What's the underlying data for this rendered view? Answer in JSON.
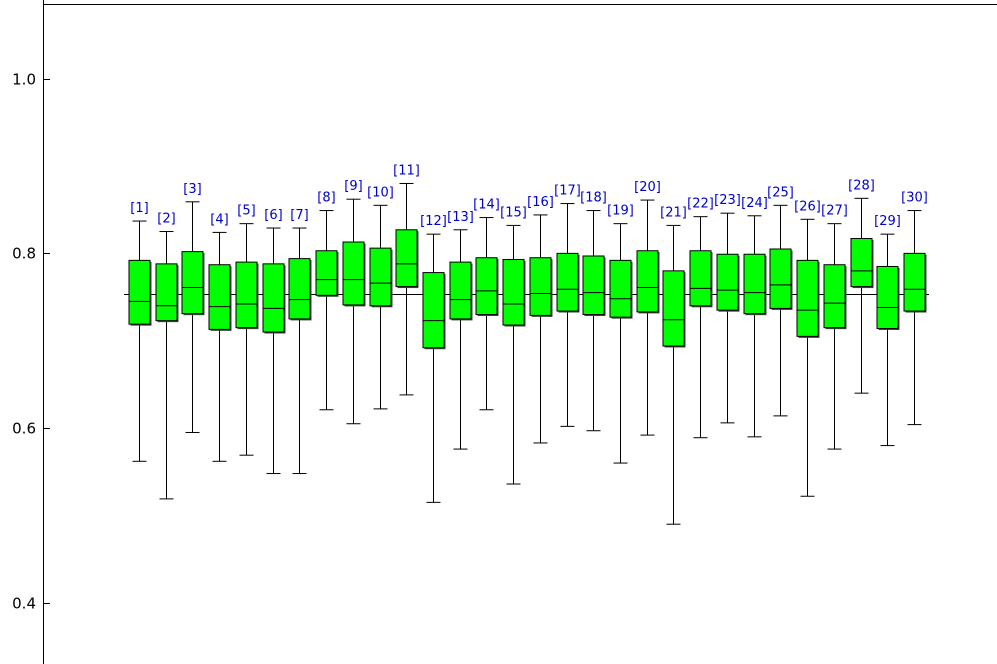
{
  "chart_data": {
    "type": "boxplot",
    "title": "",
    "xlabel": "",
    "ylabel": "",
    "ylim": [
      0.33,
      1.09
    ],
    "yticks": [
      0.4,
      0.6,
      0.8,
      1.0
    ],
    "ytick_labels": [
      "0.4",
      "0.6",
      "0.8",
      "1.0"
    ],
    "reference_line": 0.753,
    "box_color": "#00ff00",
    "label_color": "#0000cc",
    "boxes": [
      {
        "label": "[1]",
        "whisker_low": 0.562,
        "q1": 0.719,
        "median": 0.745,
        "q3": 0.792,
        "whisker_high": 0.837
      },
      {
        "label": "[2]",
        "whisker_low": 0.519,
        "q1": 0.723,
        "median": 0.74,
        "q3": 0.788,
        "whisker_high": 0.825
      },
      {
        "label": "[3]",
        "whisker_low": 0.595,
        "q1": 0.731,
        "median": 0.761,
        "q3": 0.802,
        "whisker_high": 0.859
      },
      {
        "label": "[4]",
        "whisker_low": 0.562,
        "q1": 0.713,
        "median": 0.739,
        "q3": 0.787,
        "whisker_high": 0.824
      },
      {
        "label": "[5]",
        "whisker_low": 0.569,
        "q1": 0.715,
        "median": 0.742,
        "q3": 0.79,
        "whisker_high": 0.834
      },
      {
        "label": "[6]",
        "whisker_low": 0.548,
        "q1": 0.71,
        "median": 0.737,
        "q3": 0.788,
        "whisker_high": 0.829
      },
      {
        "label": "[7]",
        "whisker_low": 0.548,
        "q1": 0.725,
        "median": 0.747,
        "q3": 0.794,
        "whisker_high": 0.829
      },
      {
        "label": "[8]",
        "whisker_low": 0.621,
        "q1": 0.752,
        "median": 0.77,
        "q3": 0.803,
        "whisker_high": 0.849
      },
      {
        "label": "[9]",
        "whisker_low": 0.605,
        "q1": 0.741,
        "median": 0.77,
        "q3": 0.813,
        "whisker_high": 0.862
      },
      {
        "label": "[10]",
        "whisker_low": 0.622,
        "q1": 0.74,
        "median": 0.766,
        "q3": 0.806,
        "whisker_high": 0.855
      },
      {
        "label": "[11]",
        "whisker_low": 0.638,
        "q1": 0.762,
        "median": 0.788,
        "q3": 0.827,
        "whisker_high": 0.88
      },
      {
        "label": "[12]",
        "whisker_low": 0.515,
        "q1": 0.692,
        "median": 0.723,
        "q3": 0.778,
        "whisker_high": 0.822
      },
      {
        "label": "[13]",
        "whisker_low": 0.576,
        "q1": 0.725,
        "median": 0.747,
        "q3": 0.79,
        "whisker_high": 0.827
      },
      {
        "label": "[14]",
        "whisker_low": 0.621,
        "q1": 0.73,
        "median": 0.757,
        "q3": 0.795,
        "whisker_high": 0.841
      },
      {
        "label": "[15]",
        "whisker_low": 0.536,
        "q1": 0.718,
        "median": 0.742,
        "q3": 0.793,
        "whisker_high": 0.832
      },
      {
        "label": "[16]",
        "whisker_low": 0.583,
        "q1": 0.729,
        "median": 0.754,
        "q3": 0.795,
        "whisker_high": 0.844
      },
      {
        "label": "[17]",
        "whisker_low": 0.602,
        "q1": 0.734,
        "median": 0.759,
        "q3": 0.8,
        "whisker_high": 0.857
      },
      {
        "label": "[18]",
        "whisker_low": 0.597,
        "q1": 0.73,
        "median": 0.755,
        "q3": 0.797,
        "whisker_high": 0.849
      },
      {
        "label": "[19]",
        "whisker_low": 0.56,
        "q1": 0.727,
        "median": 0.748,
        "q3": 0.792,
        "whisker_high": 0.834
      },
      {
        "label": "[20]",
        "whisker_low": 0.592,
        "q1": 0.733,
        "median": 0.761,
        "q3": 0.803,
        "whisker_high": 0.861
      },
      {
        "label": "[21]",
        "whisker_low": 0.49,
        "q1": 0.694,
        "median": 0.724,
        "q3": 0.78,
        "whisker_high": 0.832
      },
      {
        "label": "[22]",
        "whisker_low": 0.589,
        "q1": 0.74,
        "median": 0.76,
        "q3": 0.803,
        "whisker_high": 0.842
      },
      {
        "label": "[23]",
        "whisker_low": 0.606,
        "q1": 0.735,
        "median": 0.758,
        "q3": 0.799,
        "whisker_high": 0.846
      },
      {
        "label": "[24]",
        "whisker_low": 0.59,
        "q1": 0.731,
        "median": 0.755,
        "q3": 0.799,
        "whisker_high": 0.843
      },
      {
        "label": "[25]",
        "whisker_low": 0.614,
        "q1": 0.737,
        "median": 0.764,
        "q3": 0.805,
        "whisker_high": 0.855
      },
      {
        "label": "[26]",
        "whisker_low": 0.522,
        "q1": 0.705,
        "median": 0.735,
        "q3": 0.792,
        "whisker_high": 0.839
      },
      {
        "label": "[27]",
        "whisker_low": 0.576,
        "q1": 0.715,
        "median": 0.743,
        "q3": 0.787,
        "whisker_high": 0.834
      },
      {
        "label": "[28]",
        "whisker_low": 0.64,
        "q1": 0.762,
        "median": 0.78,
        "q3": 0.817,
        "whisker_high": 0.863
      },
      {
        "label": "[29]",
        "whisker_low": 0.58,
        "q1": 0.714,
        "median": 0.738,
        "q3": 0.785,
        "whisker_high": 0.822
      },
      {
        "label": "[30]",
        "whisker_low": 0.604,
        "q1": 0.734,
        "median": 0.759,
        "q3": 0.8,
        "whisker_high": 0.849
      }
    ]
  }
}
